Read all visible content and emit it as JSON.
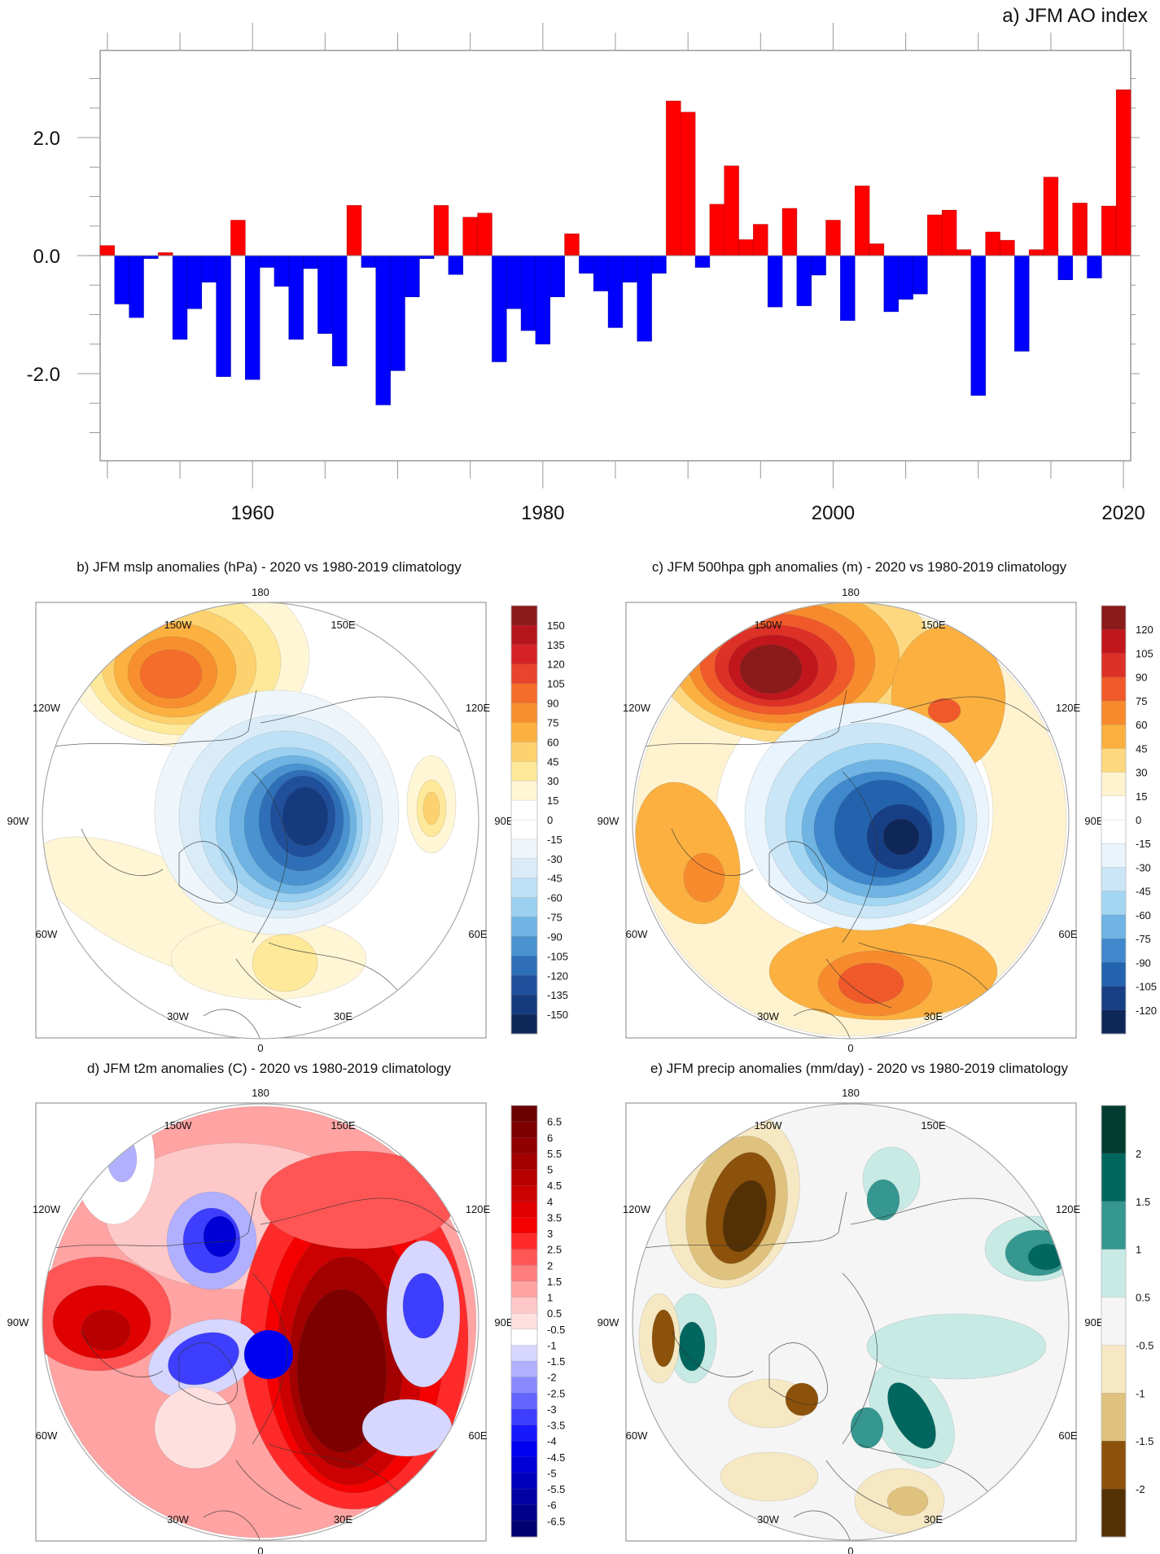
{
  "chart_data": [
    {
      "id": "a",
      "type": "bar",
      "title": "a) JFM AO index",
      "xlabel": "",
      "ylabel": "",
      "x_start": 1950,
      "x_end": 2020,
      "xlim": [
        1949.5,
        2020.5
      ],
      "ylim": [
        -3.5,
        3.5
      ],
      "x_ticks": [
        1960,
        1980,
        2000,
        2020
      ],
      "x_tick_labels": [
        "1960",
        "1980",
        "2000",
        "2020"
      ],
      "y_ticks": [
        2.0,
        0.0,
        -2.0
      ],
      "y_tick_labels": [
        "2.0",
        "0.0",
        "-2.0"
      ],
      "positive_color": "#ff0000",
      "negative_color": "#0000ff",
      "grid": false,
      "categories": [
        1950,
        1951,
        1952,
        1953,
        1954,
        1955,
        1956,
        1957,
        1958,
        1959,
        1960,
        1961,
        1962,
        1963,
        1964,
        1965,
        1966,
        1967,
        1968,
        1969,
        1970,
        1971,
        1972,
        1973,
        1974,
        1975,
        1976,
        1977,
        1978,
        1979,
        1980,
        1981,
        1982,
        1983,
        1984,
        1985,
        1986,
        1987,
        1988,
        1989,
        1990,
        1991,
        1992,
        1993,
        1994,
        1995,
        1996,
        1997,
        1998,
        1999,
        2000,
        2001,
        2002,
        2003,
        2004,
        2005,
        2006,
        2007,
        2008,
        2009,
        2010,
        2011,
        2012,
        2013,
        2014,
        2015,
        2016,
        2017,
        2018,
        2019,
        2020
      ],
      "values": [
        0.17,
        -0.82,
        -1.05,
        -0.05,
        0.05,
        -1.42,
        -0.9,
        -0.45,
        -2.05,
        0.6,
        -2.1,
        -0.2,
        -0.52,
        -1.42,
        -0.22,
        -1.32,
        -1.87,
        0.85,
        -0.2,
        -2.53,
        -1.95,
        -0.7,
        -0.05,
        0.85,
        -0.32,
        0.65,
        0.72,
        -1.8,
        -0.9,
        -1.27,
        -1.5,
        -0.7,
        0.37,
        -0.3,
        -0.6,
        -1.22,
        -0.45,
        -1.45,
        -0.3,
        2.62,
        2.43,
        -0.2,
        0.87,
        1.52,
        0.27,
        0.53,
        -0.87,
        0.8,
        -0.85,
        -0.33,
        0.6,
        -1.1,
        1.18,
        0.2,
        -0.95,
        -0.74,
        -0.65,
        0.69,
        0.77,
        0.1,
        -2.37,
        0.4,
        0.26,
        -1.62,
        0.1,
        1.33,
        -0.41,
        0.89,
        -0.38,
        0.84,
        2.81
      ]
    },
    {
      "id": "b",
      "type": "heatmap",
      "title": "b) JFM mslp anomalies (hPa) - 2020 vs 1980-2019 climatology",
      "projection": "north-polar-stereographic",
      "lon_labels": [
        "180",
        "150W",
        "150E",
        "120W",
        "120E",
        "90W",
        "90E",
        "60W",
        "60E",
        "30W",
        "30E",
        "0"
      ],
      "colorbar": {
        "levels": [
          "150",
          "135",
          "120",
          "105",
          "90",
          "75",
          "60",
          "45",
          "30",
          "15",
          "0",
          "-15",
          "-30",
          "-45",
          "-60",
          "-75",
          "-90",
          "-105",
          "-120",
          "-135",
          "-150"
        ],
        "colors": [
          "#8b1a1a",
          "#b5161c",
          "#d62226",
          "#e8452c",
          "#f46d2b",
          "#f88f2e",
          "#fbb040",
          "#fdd26e",
          "#fee99a",
          "#fff6d6",
          "#ffffff",
          "#ffffff",
          "#eef6fc",
          "#d9ecf8",
          "#bfe1f5",
          "#9bd0f0",
          "#6fb3e2",
          "#4a93d0",
          "#2f6fb7",
          "#20509c",
          "#163a7e",
          "#0f2758"
        ]
      },
      "features": [
        {
          "name": "high-pressure-alaska",
          "sign": "positive",
          "peak_level": "105"
        },
        {
          "name": "low-pressure-arctic-barents",
          "sign": "negative",
          "peak_level": "-150"
        },
        {
          "name": "weak-high-central-asia",
          "sign": "positive",
          "peak_level": "60"
        },
        {
          "name": "weak-high-atlantic-europe",
          "sign": "positive",
          "peak_level": "30"
        }
      ]
    },
    {
      "id": "c",
      "type": "heatmap",
      "title": "c) JFM 500hpa gph anomalies (m) - 2020 vs 1980-2019 climatology",
      "projection": "north-polar-stereographic",
      "lon_labels": [
        "180",
        "150W",
        "150E",
        "120W",
        "120E",
        "90W",
        "90E",
        "60W",
        "60E",
        "30W",
        "30E",
        "0"
      ],
      "colorbar": {
        "levels": [
          "120",
          "105",
          "90",
          "75",
          "60",
          "45",
          "30",
          "15",
          "0",
          "-15",
          "-30",
          "-45",
          "-60",
          "-75",
          "-90",
          "-105",
          "-120"
        ],
        "colors": [
          "#8b1a1a",
          "#c0161c",
          "#dd3027",
          "#f05a2a",
          "#f88a2e",
          "#fbb040",
          "#fdd880",
          "#fff3cf",
          "#ffffff",
          "#ffffff",
          "#e9f4fc",
          "#cbe6f6",
          "#a3d6f2",
          "#6fb4e2",
          "#3f88cc",
          "#2363ae",
          "#173f86",
          "#0f2758"
        ]
      },
      "features": [
        {
          "name": "ridge-alaska",
          "sign": "positive",
          "peak_level": "120"
        },
        {
          "name": "trough-arctic",
          "sign": "negative",
          "peak_level": "-120"
        },
        {
          "name": "ridge-europe",
          "sign": "positive",
          "peak_level": "75"
        },
        {
          "name": "ridge-east-siberia",
          "sign": "positive",
          "peak_level": "60"
        },
        {
          "name": "ridge-north-america-east",
          "sign": "positive",
          "peak_level": "60"
        }
      ]
    },
    {
      "id": "d",
      "type": "heatmap",
      "title": "d) JFM t2m anomalies (C) - 2020 vs 1980-2019 climatology",
      "projection": "north-polar-stereographic",
      "lon_labels": [
        "180",
        "150W",
        "150E",
        "120W",
        "120E",
        "90W",
        "90E",
        "60W",
        "60E",
        "30W",
        "30E",
        "0"
      ],
      "colorbar": {
        "levels": [
          "6.5",
          "6",
          "5.5",
          "5",
          "4.5",
          "4",
          "3.5",
          "3",
          "2.5",
          "2",
          "1.5",
          "1",
          "0.5",
          "-0.5",
          "-1",
          "-1.5",
          "-2",
          "-2.5",
          "-3",
          "-3.5",
          "-4",
          "-4.5",
          "-5",
          "-5.5",
          "-6",
          "-6.5"
        ],
        "colors": [
          "#6a0000",
          "#7d0000",
          "#900000",
          "#a30000",
          "#b80000",
          "#cc0000",
          "#e00000",
          "#f50000",
          "#ff2b2b",
          "#ff5555",
          "#ff7d7d",
          "#ffa3a3",
          "#ffc8c8",
          "#ffe0e0",
          "#ffffff",
          "#d6d6ff",
          "#b0b0ff",
          "#8a8aff",
          "#6464ff",
          "#3e3eff",
          "#1818ff",
          "#0000f0",
          "#0000d6",
          "#0000bc",
          "#0000a3",
          "#00008a",
          "#000070"
        ]
      },
      "features": [
        {
          "name": "warm-eurasia",
          "sign": "positive",
          "peak_level": "6.5"
        },
        {
          "name": "warm-eastern-north-america",
          "sign": "positive",
          "peak_level": "4"
        },
        {
          "name": "cold-alaska-canada",
          "sign": "negative",
          "peak_level": "-6"
        },
        {
          "name": "cold-greenland",
          "sign": "negative",
          "peak_level": "-5"
        },
        {
          "name": "cold-central-asia",
          "sign": "negative",
          "peak_level": "-4"
        }
      ]
    },
    {
      "id": "e",
      "type": "heatmap",
      "title": "e) JFM precip anomalies (mm/day) - 2020 vs 1980-2019 climatology",
      "projection": "north-polar-stereographic",
      "lon_labels": [
        "180",
        "150W",
        "150E",
        "120W",
        "120E",
        "90W",
        "90E",
        "60W",
        "60E",
        "30W",
        "30E",
        "0"
      ],
      "colorbar": {
        "levels": [
          "2",
          "1.5",
          "1",
          "0.5",
          "-0.5",
          "-1",
          "-1.5",
          "-2"
        ],
        "colors": [
          "#003c30",
          "#01665e",
          "#35978f",
          "#c7eae5",
          "#f5f5f5",
          "#f6e8c3",
          "#dfc27d",
          "#8c510a",
          "#543005"
        ]
      },
      "features": [
        {
          "name": "dry-gulf-of-alaska",
          "sign": "negative",
          "peak_level": "-2"
        },
        {
          "name": "wet-north-atlantic-scandinavia",
          "sign": "positive",
          "peak_level": "2"
        },
        {
          "name": "wet-japan-pacific",
          "sign": "positive",
          "peak_level": "2"
        },
        {
          "name": "dry-mediterranean",
          "sign": "negative",
          "peak_level": "-1.5"
        },
        {
          "name": "dry-southeast-us",
          "sign": "negative",
          "peak_level": "-2"
        }
      ]
    }
  ]
}
